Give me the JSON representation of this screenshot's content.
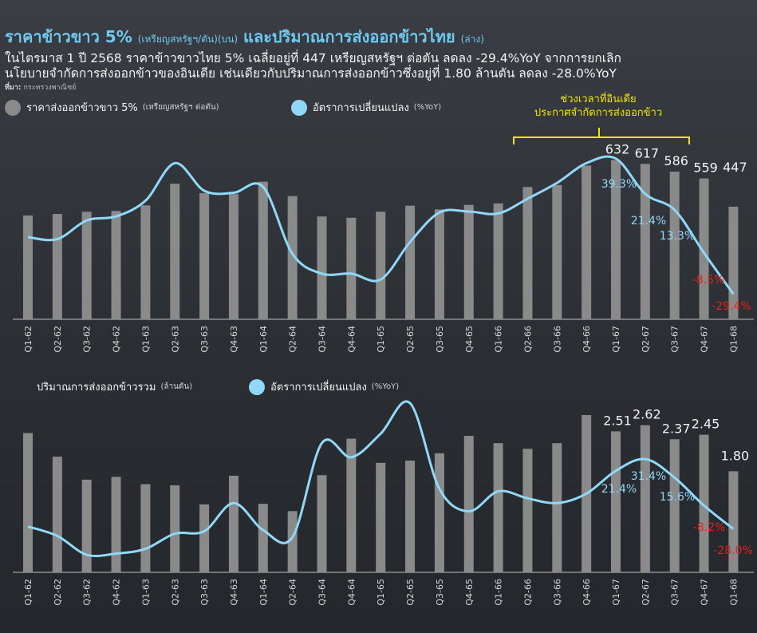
{
  "title": {
    "main": "ราคาข้าวขาว 5%",
    "main_unit": "(เหรียญสหรัฐฯ/ตัน)(บน)",
    "second": "และปริมาณการส่งออกข้าวไทย",
    "second_unit": "(ล่าง)"
  },
  "subtitle_lines": [
    "ในไตรมาส 1 ปี 2568 ราคาข้าวขาวไทย 5% เฉลี่ยอยู่ที่ 447 เหรียญสหรัฐฯ ต่อตัน ลดลง -29.4%YoY จากการยกเลิก",
    "นโยบายจำกัดการส่งออกข้าวของอินเดีย เช่นเดียวกับปริมาณการส่งออกข้าวซึ่งอยู่ที่ 1.80 ล้านตัน ลดลง -28.0%YoY"
  ],
  "source": {
    "label": "ที่มา:",
    "text": "กระทรวงพาณิชย์"
  },
  "annotation": {
    "line1": "ช่วงเวลาที่อินเดีย",
    "line2": "ประกาศจำกัดการส่งออกข้าว"
  },
  "colors": {
    "bar": "#8a8a8a",
    "line": "#8fd8f8",
    "label_positive": "#8fd8f8",
    "label_negative": "#e2231a",
    "annotation": "#f4e600",
    "title": "#6ec9f0"
  },
  "chart_data": [
    {
      "type": "bar",
      "legend": [
        {
          "name": "ราคาส่งออกข้าวขาว 5%",
          "unit": "(เหรียญสหรัฐฯ ต่อตัน)",
          "swatch": "bar"
        },
        {
          "name": "อัตราการเปลี่ยนแปลง",
          "unit": "(%YoY)",
          "swatch": "line"
        }
      ],
      "categories": [
        "Q1-62",
        "Q2-62",
        "Q3-62",
        "Q4-62",
        "Q1-63",
        "Q2-63",
        "Q3-63",
        "Q4-63",
        "Q1-64",
        "Q2-64",
        "Q3-64",
        "Q4-64",
        "Q1-65",
        "Q2-65",
        "Q3-65",
        "Q4-65",
        "Q1-66",
        "Q2-66",
        "Q3-66",
        "Q4-66",
        "Q1-67",
        "Q2-67",
        "Q3-67",
        "Q4-67",
        "Q1-68"
      ],
      "series": [
        {
          "name": "ราคาส่งออกข้าวขาว 5%",
          "kind": "bar",
          "values": [
            412,
            418,
            427,
            430,
            452,
            538,
            501,
            497,
            546,
            489,
            408,
            403,
            427,
            451,
            436,
            454,
            460,
            525,
            533,
            610,
            632,
            617,
            586,
            559,
            447
          ]
        },
        {
          "name": "อัตราการเปลี่ยนแปลง",
          "kind": "line",
          "values": [
            -0.5,
            -1.5,
            8.0,
            10.0,
            18.0,
            37.0,
            23.0,
            22.0,
            25.0,
            -9.0,
            -19.0,
            -19.0,
            -22.0,
            -3.0,
            12.0,
            12.5,
            11.5,
            19.0,
            27.0,
            37.0,
            39.3,
            21.4,
            13.3,
            -8.5,
            -29.4
          ]
        }
      ],
      "value_labels": [
        {
          "category": "Q1-67",
          "text": "632"
        },
        {
          "category": "Q2-67",
          "text": "617"
        },
        {
          "category": "Q3-67",
          "text": "586"
        },
        {
          "category": "Q4-67",
          "text": "559"
        },
        {
          "category": "Q1-68",
          "text": "447"
        }
      ],
      "pct_labels": [
        {
          "category": "Q1-67",
          "text": "39.3%",
          "sign": "pos"
        },
        {
          "category": "Q2-67",
          "text": "21.4%",
          "sign": "pos"
        },
        {
          "category": "Q3-67",
          "text": "13.3%",
          "sign": "pos"
        },
        {
          "category": "Q4-67",
          "text": "-8.5%",
          "sign": "neg"
        },
        {
          "category": "Q1-68",
          "text": "-29.4%",
          "sign": "neg"
        }
      ]
    },
    {
      "type": "bar",
      "legend": [
        {
          "name": "ปริมาณการส่งออกข้าวรวม",
          "unit": "(ล้านตัน)",
          "swatch": "none"
        },
        {
          "name": "อัตราการเปลี่ยนแปลง",
          "unit": "(%YoY)",
          "swatch": "line"
        }
      ],
      "categories": [
        "Q1-62",
        "Q2-62",
        "Q3-62",
        "Q4-62",
        "Q1-63",
        "Q2-63",
        "Q3-63",
        "Q4-63",
        "Q1-64",
        "Q2-64",
        "Q3-64",
        "Q4-64",
        "Q1-65",
        "Q2-65",
        "Q3-65",
        "Q4-65",
        "Q1-66",
        "Q2-66",
        "Q3-66",
        "Q4-66",
        "Q1-67",
        "Q2-67",
        "Q3-67",
        "Q4-67",
        "Q1-68"
      ],
      "series": [
        {
          "name": "ปริมาณการส่งออกข้าวรวม",
          "kind": "bar",
          "values": [
            2.48,
            2.06,
            1.65,
            1.7,
            1.57,
            1.55,
            1.21,
            1.72,
            1.22,
            1.09,
            1.73,
            2.38,
            1.95,
            1.99,
            2.12,
            2.43,
            2.3,
            2.2,
            2.3,
            2.8,
            2.51,
            2.62,
            2.37,
            2.45,
            1.8
          ]
        },
        {
          "name": "อัตราการเปลี่ยนแปลง",
          "kind": "line",
          "values": [
            -26.0,
            -34.0,
            -50.0,
            -49.0,
            -45.0,
            -32.0,
            -30.0,
            -6.0,
            -29.0,
            -35.0,
            45.0,
            33.0,
            53.0,
            79.0,
            6.0,
            -13.0,
            4.0,
            -2.0,
            -6.0,
            2.0,
            21.4,
            31.4,
            15.6,
            -8.2,
            -28.0
          ]
        }
      ],
      "value_labels": [
        {
          "category": "Q1-67",
          "text": "2.51"
        },
        {
          "category": "Q2-67",
          "text": "2.62"
        },
        {
          "category": "Q3-67",
          "text": "2.37"
        },
        {
          "category": "Q4-67",
          "text": "2.45"
        },
        {
          "category": "Q1-68",
          "text": "1.80"
        }
      ],
      "pct_labels": [
        {
          "category": "Q1-67",
          "text": "21.4%",
          "sign": "pos"
        },
        {
          "category": "Q2-67",
          "text": "31.4%",
          "sign": "pos"
        },
        {
          "category": "Q3-67",
          "text": "15.6%",
          "sign": "pos"
        },
        {
          "category": "Q4-67",
          "text": "-8.2%",
          "sign": "neg"
        },
        {
          "category": "Q1-68",
          "text": "-28.0%",
          "sign": "neg"
        }
      ]
    }
  ]
}
